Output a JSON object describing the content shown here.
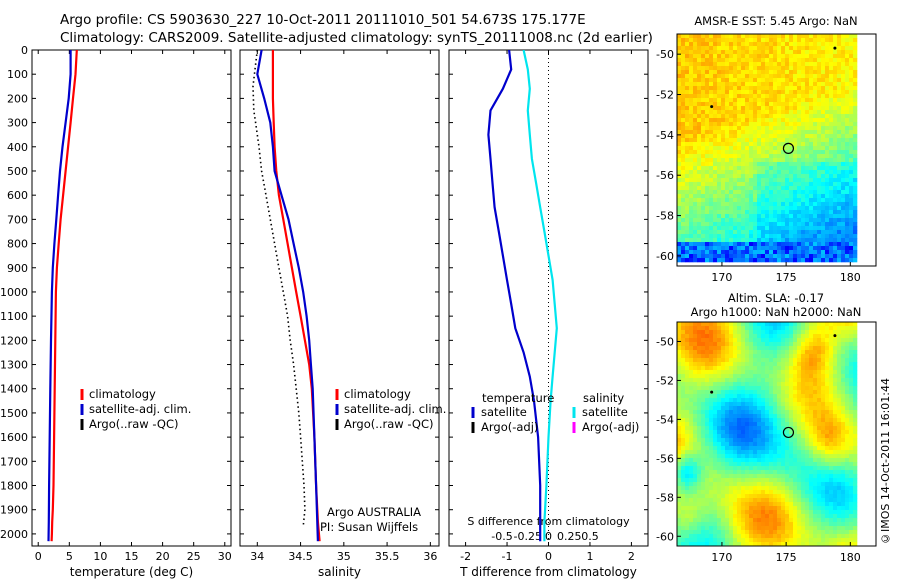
{
  "header": {
    "line1": "Argo profile: CS 5903630_227 10-Oct-2011 20111010_501 54.673S 175.177E",
    "line2": "Climatology: CARS2009. Satellite-adjusted climatology: synTS_20111008.nc (2d earlier)"
  },
  "footer": {
    "stamp": "©IMOS 14-Oct-2011 16:01:44"
  },
  "colors": {
    "climatology": "#ff0000",
    "satellite": "#0000cc",
    "argo": "#000000",
    "salinity_sat": "#00e5ee",
    "salinity_argo": "#ff00ff"
  },
  "chart_data": [
    {
      "type": "line",
      "xlabel": "temperature (deg C)",
      "ylim": [
        2050,
        0
      ],
      "xlim": [
        -1,
        31
      ],
      "xticks": [
        0,
        5,
        10,
        15,
        20,
        25,
        30
      ],
      "yticks": [
        0,
        100,
        200,
        300,
        400,
        500,
        600,
        700,
        800,
        900,
        1000,
        1100,
        1200,
        1300,
        1400,
        1500,
        1600,
        1700,
        1800,
        1900,
        2000
      ],
      "legend_position": "lower-center",
      "series": [
        {
          "name": "climatology",
          "color": "#ff0000",
          "x": [
            6.2,
            6.0,
            5.6,
            5.2,
            4.8,
            4.4,
            4.0,
            3.6,
            3.3,
            3.0,
            2.85,
            2.75,
            2.65,
            2.55,
            2.45,
            2.35,
            2.25,
            2.2,
            2.15
          ],
          "y": [
            0,
            100,
            200,
            300,
            400,
            500,
            600,
            700,
            800,
            900,
            1000,
            1200,
            1400,
            1600,
            1800,
            1900,
            1950,
            2000,
            2030
          ]
        },
        {
          "name": "satellite-adj. clim.",
          "color": "#0000cc",
          "x": [
            5.2,
            5.2,
            4.9,
            4.4,
            3.9,
            3.5,
            3.2,
            2.9,
            2.6,
            2.35,
            2.2,
            2.05,
            1.95,
            1.85,
            1.75,
            1.7,
            1.65
          ],
          "y": [
            0,
            100,
            200,
            300,
            400,
            500,
            600,
            700,
            800,
            900,
            1000,
            1200,
            1400,
            1600,
            1800,
            1950,
            2030
          ]
        },
        {
          "name": "Argo(..raw -QC)",
          "color": "#000000",
          "x": [],
          "y": []
        }
      ]
    },
    {
      "type": "line",
      "xlabel": "salinity",
      "ylim": [
        2050,
        0
      ],
      "xlim": [
        33.8,
        36.1
      ],
      "xticks": [
        34,
        34.5,
        35,
        35.5,
        36
      ],
      "xticklabels": [
        "34",
        "34.5",
        "35",
        "35.5",
        "36"
      ],
      "legend_position": "lower-right",
      "annotation": [
        "Argo AUSTRALIA",
        "PI: Susan Wijffels"
      ],
      "series": [
        {
          "name": "climatology",
          "color": "#ff0000",
          "x": [
            34.18,
            34.18,
            34.18,
            34.19,
            34.2,
            34.22,
            34.25,
            34.3,
            34.35,
            34.4,
            34.45,
            34.5,
            34.55,
            34.6,
            34.63,
            34.66,
            34.68,
            34.7,
            34.72
          ],
          "y": [
            0,
            100,
            200,
            300,
            400,
            500,
            600,
            700,
            800,
            900,
            1000,
            1100,
            1200,
            1300,
            1400,
            1600,
            1800,
            1950,
            2030
          ]
        },
        {
          "name": "satellite-adj. clim.",
          "color": "#0000cc",
          "x": [
            34.05,
            34.0,
            34.08,
            34.15,
            34.18,
            34.2,
            34.28,
            34.36,
            34.42,
            34.48,
            34.53,
            34.57,
            34.6,
            34.62,
            34.64,
            34.66,
            34.68,
            34.7
          ],
          "y": [
            0,
            100,
            200,
            300,
            400,
            500,
            600,
            700,
            800,
            900,
            1000,
            1100,
            1200,
            1300,
            1400,
            1600,
            1800,
            2030
          ]
        },
        {
          "name": "Argo(..raw -QC)",
          "color": "#000000",
          "x": [
            34.0,
            33.95,
            33.96,
            33.98,
            34.02,
            34.05,
            34.1,
            34.15,
            34.2,
            34.25,
            34.3,
            34.35,
            34.38,
            34.42,
            34.45,
            34.48,
            34.5,
            34.52,
            34.54,
            34.55,
            34.53
          ],
          "y": [
            0,
            150,
            250,
            300,
            400,
            500,
            600,
            700,
            800,
            900,
            1000,
            1100,
            1200,
            1300,
            1400,
            1500,
            1600,
            1700,
            1800,
            1900,
            1970
          ]
        }
      ]
    },
    {
      "type": "line",
      "xlabel": "T difference from climatology",
      "ylim": [
        2050,
        0
      ],
      "xlim": [
        -2.4,
        2.4
      ],
      "xticks": [
        -2,
        -1,
        0,
        1,
        2
      ],
      "top_axis_label": "S difference from climatology",
      "top_axis_ticks": [
        "-0.5",
        "-0.25",
        "0",
        "0.25",
        "0.5"
      ],
      "legend": {
        "temperature": [
          "satellite",
          "Argo(-adj)"
        ],
        "salinity": [
          "satellite",
          "Argo(-adj)"
        ],
        "temperature_title": "temperature",
        "salinity_title": "salinity"
      },
      "legend_position": "lower-center",
      "series": [
        {
          "name": "satellite",
          "group": "temperature",
          "color": "#0000cc",
          "x": [
            -0.95,
            -0.9,
            -1.1,
            -1.4,
            -1.45,
            -1.4,
            -1.35,
            -1.3,
            -1.2,
            -1.1,
            -1.0,
            -0.9,
            -0.8,
            -0.6,
            -0.45,
            -0.35,
            -0.25,
            -0.2,
            -0.2
          ],
          "y": [
            0,
            80,
            160,
            250,
            350,
            450,
            550,
            650,
            750,
            850,
            950,
            1050,
            1150,
            1250,
            1350,
            1450,
            1600,
            1800,
            2030
          ]
        },
        {
          "name": "satellite",
          "group": "salinity",
          "color": "#00e5ee",
          "x": [
            -0.6,
            -0.5,
            -0.45,
            -0.5,
            -0.45,
            -0.4,
            -0.3,
            -0.2,
            -0.1,
            0.0,
            0.1,
            0.15,
            0.2,
            0.15,
            0.1,
            0.05,
            0.0,
            -0.05,
            -0.1,
            -0.1
          ],
          "y": [
            0,
            80,
            160,
            250,
            350,
            450,
            550,
            650,
            750,
            850,
            950,
            1050,
            1150,
            1250,
            1350,
            1450,
            1600,
            1800,
            1950,
            2030
          ]
        }
      ]
    },
    {
      "type": "heatmap",
      "title": "AMSR-E SST: 5.45 Argo: NaN",
      "xlim": [
        166.5,
        182
      ],
      "ylim": [
        -60.5,
        -49
      ],
      "xticks": [
        170,
        175,
        180
      ],
      "yticks": [
        -50,
        -52,
        -54,
        -56,
        -58,
        -60
      ],
      "marker": {
        "x": 175.18,
        "y": -54.67
      }
    },
    {
      "type": "heatmap",
      "title": "Altim. SLA: -0.17",
      "subtitle": "Argo h1000: NaN h2000: NaN",
      "xlim": [
        166.5,
        182
      ],
      "ylim": [
        -60.5,
        -49
      ],
      "xticks": [
        170,
        175,
        180
      ],
      "yticks": [
        -50,
        -52,
        -54,
        -56,
        -58,
        -60
      ],
      "marker": {
        "x": 175.18,
        "y": -54.67
      }
    }
  ]
}
